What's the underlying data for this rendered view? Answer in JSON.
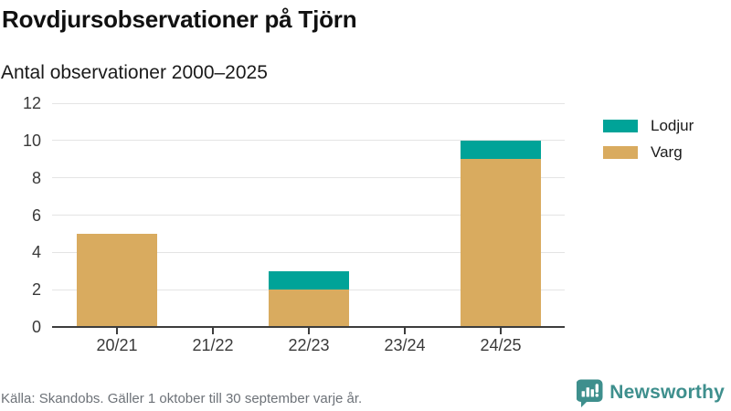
{
  "header": {
    "title": "Rovdjursobservationer på Tjörn",
    "subtitle": "Antal observationer 2000–2025"
  },
  "chart_data": {
    "type": "bar",
    "stacked": true,
    "title": "Rovdjursobservationer på Tjörn",
    "subtitle": "Antal observationer 2000–2025",
    "categories": [
      "20/21",
      "21/22",
      "22/23",
      "23/24",
      "24/25"
    ],
    "series": [
      {
        "name": "Lodjur",
        "color": "#00a398",
        "values": [
          0,
          0,
          1,
          0,
          1
        ]
      },
      {
        "name": "Varg",
        "color": "#d9ab5f",
        "values": [
          5,
          0,
          2,
          0,
          9
        ]
      }
    ],
    "totals": [
      5,
      0,
      3,
      0,
      10
    ],
    "xlabel": "",
    "ylabel": "",
    "ylim": [
      0,
      12
    ],
    "ytick_step": 2,
    "yticks": [
      0,
      2,
      4,
      6,
      8,
      10,
      12
    ],
    "grid": true,
    "legend_position": "right",
    "stack_order_bottom_to_top": [
      "Varg",
      "Lodjur"
    ]
  },
  "legend": {
    "items": [
      {
        "label": "Lodjur",
        "color": "#00a398"
      },
      {
        "label": "Varg",
        "color": "#d9ab5f"
      }
    ]
  },
  "footer": {
    "source": "Källa: Skandobs. Gäller 1 oktober till 30 september varje år.",
    "brand": "Newsworthy"
  },
  "colors": {
    "lodjur": "#00a398",
    "varg": "#d9ab5f",
    "axis": "#3d3d3d",
    "grid": "#e4e4e4",
    "text": "#1a1a1a",
    "axis_text": "#3a3a3a",
    "source_text": "#6d7278",
    "brand_teal": "#3e8f8d"
  }
}
